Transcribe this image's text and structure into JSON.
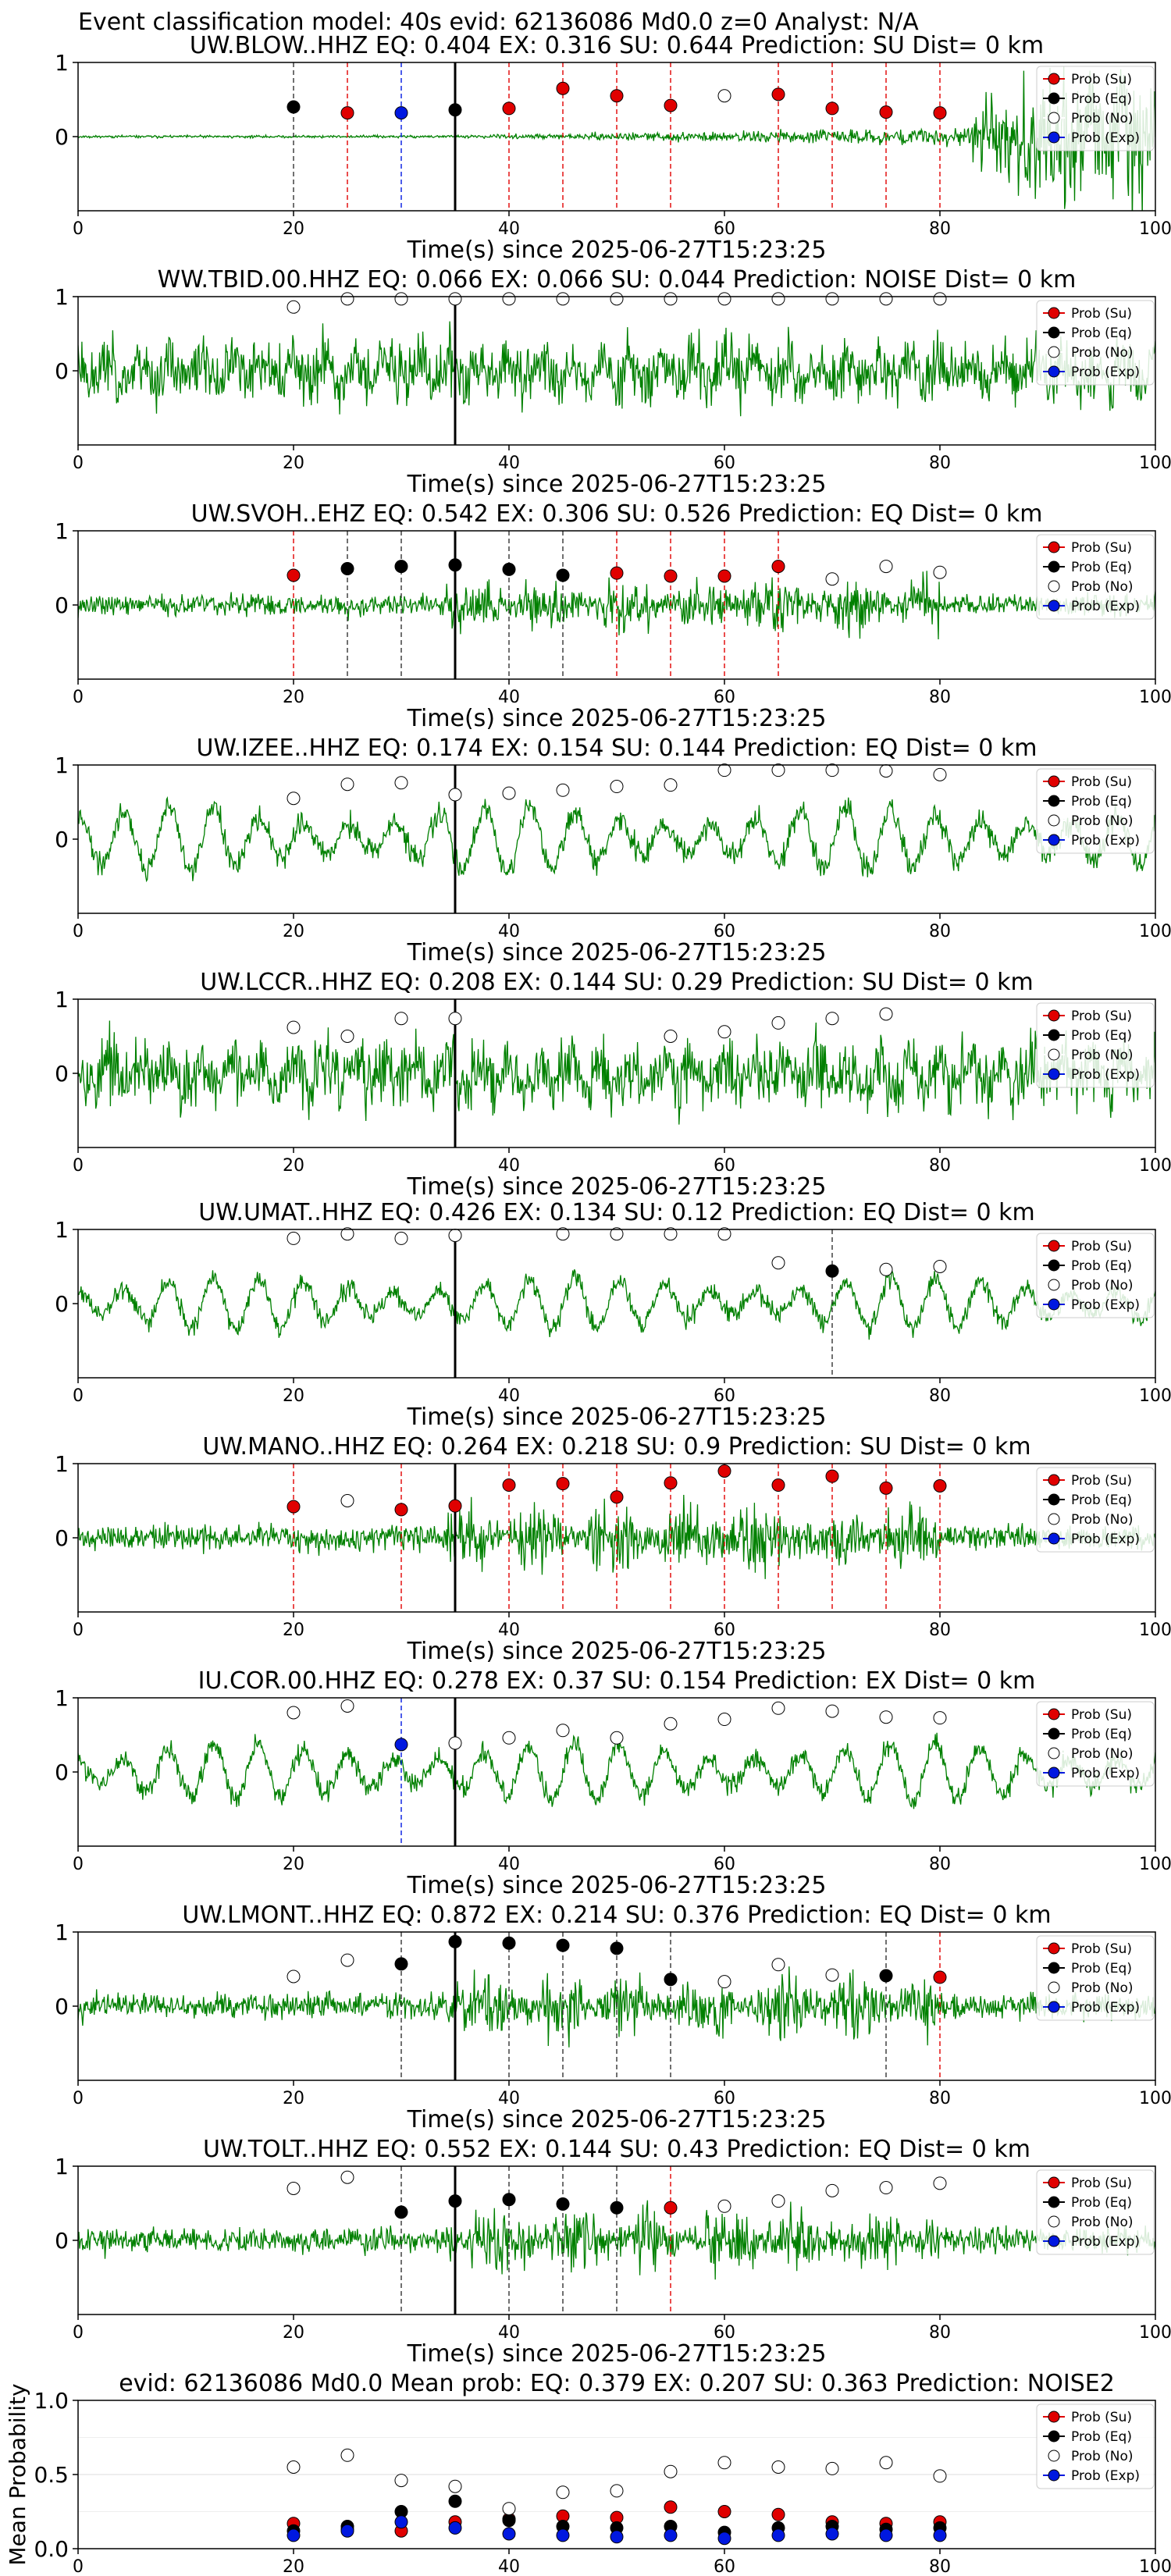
{
  "figure": {
    "suptitle": "Event classification model: 40s evid: 62136086 Md0.0 z=0 Analyst: N/A",
    "xlabel": "Time(s) since 2025-06-27T15:23:25",
    "colors": {
      "trace": "#008000",
      "su": "#e00000",
      "eq": "#000000",
      "no": "#ffffff",
      "exp": "#0018e0"
    }
  },
  "legend": [
    "Prob (Su)",
    "Prob (Eq)",
    "Prob (No)",
    "Prob (Exp)"
  ],
  "chart_data": [
    {
      "type": "line",
      "title": "UW.BLOW..HHZ   EQ: 0.404   EX: 0.316   SU: 0.644   Prediction: SU    Dist= 0 km",
      "xlim": [
        0,
        100
      ],
      "ylim": [
        -1,
        1
      ],
      "yticks": [
        "0",
        "1"
      ],
      "xticks": [
        "0",
        "20",
        "40",
        "60",
        "80",
        "100"
      ],
      "trace_profile": "emergent",
      "trace_amplitude": 0.12,
      "trace_seed": 11,
      "pick_line": 35,
      "points": [
        {
          "t": 20,
          "cls": "eq",
          "p": 0.4
        },
        {
          "t": 25,
          "cls": "su",
          "p": 0.32
        },
        {
          "t": 30,
          "cls": "exp",
          "p": 0.32
        },
        {
          "t": 35,
          "cls": "eq",
          "p": 0.36
        },
        {
          "t": 40,
          "cls": "su",
          "p": 0.38
        },
        {
          "t": 45,
          "cls": "su",
          "p": 0.65
        },
        {
          "t": 50,
          "cls": "su",
          "p": 0.55
        },
        {
          "t": 55,
          "cls": "su",
          "p": 0.42
        },
        {
          "t": 60,
          "cls": "no",
          "p": 0.55
        },
        {
          "t": 65,
          "cls": "su",
          "p": 0.57
        },
        {
          "t": 70,
          "cls": "su",
          "p": 0.38
        },
        {
          "t": 75,
          "cls": "su",
          "p": 0.33
        },
        {
          "t": 80,
          "cls": "su",
          "p": 0.32
        }
      ]
    },
    {
      "type": "line",
      "title": "WW.TBID.00.HHZ   EQ: 0.066  EX: 0.066  SU: 0.044   Prediction: NOISE    Dist= 0 km",
      "xlim": [
        0,
        100
      ],
      "ylim": [
        -1,
        1
      ],
      "yticks": [
        "0",
        "1"
      ],
      "xticks": [
        "0",
        "20",
        "40",
        "60",
        "80",
        "100"
      ],
      "trace_profile": "noise",
      "trace_amplitude": 0.55,
      "trace_seed": 23,
      "pick_line": 35,
      "points": [
        {
          "t": 20,
          "cls": "no",
          "p": 0.86
        },
        {
          "t": 25,
          "cls": "no",
          "p": 0.97
        },
        {
          "t": 30,
          "cls": "no",
          "p": 0.97
        },
        {
          "t": 35,
          "cls": "no",
          "p": 0.97
        },
        {
          "t": 40,
          "cls": "no",
          "p": 0.97
        },
        {
          "t": 45,
          "cls": "no",
          "p": 0.97
        },
        {
          "t": 50,
          "cls": "no",
          "p": 0.97
        },
        {
          "t": 55,
          "cls": "no",
          "p": 0.97
        },
        {
          "t": 60,
          "cls": "no",
          "p": 0.97
        },
        {
          "t": 65,
          "cls": "no",
          "p": 0.97
        },
        {
          "t": 70,
          "cls": "no",
          "p": 0.97
        },
        {
          "t": 75,
          "cls": "no",
          "p": 0.97
        },
        {
          "t": 80,
          "cls": "no",
          "p": 0.97
        }
      ]
    },
    {
      "type": "line",
      "title": "UW.SVOH..EHZ   EQ: 0.542   EX: 0.306   SU: 0.526   Prediction: EQ    Dist= 0 km",
      "xlim": [
        0,
        100
      ],
      "ylim": [
        -1,
        1
      ],
      "yticks": [
        "0",
        "1"
      ],
      "xticks": [
        "0",
        "20",
        "40",
        "60",
        "80",
        "100"
      ],
      "trace_profile": "burst",
      "trace_amplitude": 0.25,
      "trace_seed": 37,
      "pick_line": 35,
      "points": [
        {
          "t": 20,
          "cls": "su",
          "p": 0.4
        },
        {
          "t": 25,
          "cls": "eq",
          "p": 0.49
        },
        {
          "t": 30,
          "cls": "eq",
          "p": 0.52
        },
        {
          "t": 35,
          "cls": "eq",
          "p": 0.54
        },
        {
          "t": 40,
          "cls": "eq",
          "p": 0.48
        },
        {
          "t": 45,
          "cls": "eq",
          "p": 0.4
        },
        {
          "t": 50,
          "cls": "su",
          "p": 0.43
        },
        {
          "t": 55,
          "cls": "su",
          "p": 0.39
        },
        {
          "t": 60,
          "cls": "su",
          "p": 0.39
        },
        {
          "t": 65,
          "cls": "su",
          "p": 0.52
        },
        {
          "t": 70,
          "cls": "no",
          "p": 0.35
        },
        {
          "t": 75,
          "cls": "no",
          "p": 0.52
        },
        {
          "t": 80,
          "cls": "no",
          "p": 0.44
        }
      ]
    },
    {
      "type": "line",
      "title": "UW.IZEE..HHZ   EQ: 0.174  EX: 0.154  SU: 0.144   Prediction: EQ    Dist= 0 km",
      "xlim": [
        0,
        100
      ],
      "ylim": [
        -1,
        1
      ],
      "yticks": [
        "0",
        "1"
      ],
      "xticks": [
        "0",
        "20",
        "40",
        "60",
        "80",
        "100"
      ],
      "trace_profile": "wave",
      "trace_amplitude": 0.55,
      "trace_seed": 41,
      "pick_line": 35,
      "points": [
        {
          "t": 20,
          "cls": "no",
          "p": 0.55
        },
        {
          "t": 25,
          "cls": "no",
          "p": 0.74
        },
        {
          "t": 30,
          "cls": "no",
          "p": 0.76
        },
        {
          "t": 35,
          "cls": "no",
          "p": 0.6
        },
        {
          "t": 40,
          "cls": "no",
          "p": 0.62
        },
        {
          "t": 45,
          "cls": "no",
          "p": 0.66
        },
        {
          "t": 50,
          "cls": "no",
          "p": 0.71
        },
        {
          "t": 55,
          "cls": "no",
          "p": 0.73
        },
        {
          "t": 60,
          "cls": "no",
          "p": 0.93
        },
        {
          "t": 65,
          "cls": "no",
          "p": 0.93
        },
        {
          "t": 70,
          "cls": "no",
          "p": 0.93
        },
        {
          "t": 75,
          "cls": "no",
          "p": 0.92
        },
        {
          "t": 80,
          "cls": "no",
          "p": 0.87
        }
      ]
    },
    {
      "type": "line",
      "title": "UW.LCCR..HHZ   EQ: 0.208  EX: 0.144  SU: 0.29   Prediction: SU    Dist= 0 km",
      "xlim": [
        0,
        100
      ],
      "ylim": [
        -1,
        1
      ],
      "yticks": [
        "0",
        "1"
      ],
      "xticks": [
        "0",
        "20",
        "40",
        "60",
        "80",
        "100"
      ],
      "trace_profile": "noise",
      "trace_amplitude": 0.6,
      "trace_seed": 53,
      "pick_line": 35,
      "points": [
        {
          "t": 20,
          "cls": "no",
          "p": 0.62
        },
        {
          "t": 25,
          "cls": "no",
          "p": 0.5
        },
        {
          "t": 30,
          "cls": "no",
          "p": 0.74
        },
        {
          "t": 35,
          "cls": "no",
          "p": 0.74
        },
        {
          "t": 55,
          "cls": "no",
          "p": 0.5
        },
        {
          "t": 60,
          "cls": "no",
          "p": 0.56
        },
        {
          "t": 65,
          "cls": "no",
          "p": 0.68
        },
        {
          "t": 70,
          "cls": "no",
          "p": 0.74
        },
        {
          "t": 75,
          "cls": "no",
          "p": 0.8
        }
      ]
    },
    {
      "type": "line",
      "title": "UW.UMAT..HHZ   EQ: 0.426  EX: 0.134  SU: 0.12   Prediction: EQ    Dist= 0 km",
      "xlim": [
        0,
        100
      ],
      "ylim": [
        -1,
        1
      ],
      "yticks": [
        "0",
        "1"
      ],
      "xticks": [
        "0",
        "20",
        "40",
        "60",
        "80",
        "100"
      ],
      "trace_profile": "wave",
      "trace_amplitude": 0.45,
      "trace_seed": 61,
      "pick_line": 35,
      "points": [
        {
          "t": 20,
          "cls": "no",
          "p": 0.88
        },
        {
          "t": 25,
          "cls": "no",
          "p": 0.94
        },
        {
          "t": 30,
          "cls": "no",
          "p": 0.88
        },
        {
          "t": 35,
          "cls": "no",
          "p": 0.92
        },
        {
          "t": 45,
          "cls": "no",
          "p": 0.94
        },
        {
          "t": 50,
          "cls": "no",
          "p": 0.94
        },
        {
          "t": 55,
          "cls": "no",
          "p": 0.94
        },
        {
          "t": 60,
          "cls": "no",
          "p": 0.94
        },
        {
          "t": 65,
          "cls": "no",
          "p": 0.55
        },
        {
          "t": 70,
          "cls": "eq",
          "p": 0.44
        },
        {
          "t": 75,
          "cls": "no",
          "p": 0.46
        },
        {
          "t": 80,
          "cls": "no",
          "p": 0.5
        }
      ]
    },
    {
      "type": "line",
      "title": "UW.MANO..HHZ   EQ: 0.264  EX: 0.218  SU: 0.9   Prediction: SU    Dist= 0 km",
      "xlim": [
        0,
        100
      ],
      "ylim": [
        -1,
        1
      ],
      "yticks": [
        "0",
        "1"
      ],
      "xticks": [
        "0",
        "20",
        "40",
        "60",
        "80",
        "100"
      ],
      "trace_profile": "burst",
      "trace_amplitude": 0.3,
      "trace_seed": 71,
      "pick_line": 35,
      "points": [
        {
          "t": 20,
          "cls": "su",
          "p": 0.42
        },
        {
          "t": 25,
          "cls": "no",
          "p": 0.5
        },
        {
          "t": 30,
          "cls": "su",
          "p": 0.38
        },
        {
          "t": 35,
          "cls": "su",
          "p": 0.43
        },
        {
          "t": 40,
          "cls": "su",
          "p": 0.71
        },
        {
          "t": 45,
          "cls": "su",
          "p": 0.73
        },
        {
          "t": 50,
          "cls": "su",
          "p": 0.55
        },
        {
          "t": 55,
          "cls": "su",
          "p": 0.74
        },
        {
          "t": 60,
          "cls": "su",
          "p": 0.9
        },
        {
          "t": 65,
          "cls": "su",
          "p": 0.71
        },
        {
          "t": 70,
          "cls": "su",
          "p": 0.83
        },
        {
          "t": 75,
          "cls": "su",
          "p": 0.67
        },
        {
          "t": 80,
          "cls": "su",
          "p": 0.7
        }
      ]
    },
    {
      "type": "line",
      "title": "IU.COR.00.HHZ   EQ: 0.278  EX: 0.37  SU: 0.154   Prediction: EX    Dist= 0 km",
      "xlim": [
        0,
        100
      ],
      "ylim": [
        -1,
        1
      ],
      "yticks": [
        "0",
        "1"
      ],
      "xticks": [
        "0",
        "20",
        "40",
        "60",
        "80",
        "100"
      ],
      "trace_profile": "wave",
      "trace_amplitude": 0.5,
      "trace_seed": 83,
      "pick_line": 35,
      "points": [
        {
          "t": 20,
          "cls": "no",
          "p": 0.8
        },
        {
          "t": 25,
          "cls": "no",
          "p": 0.89
        },
        {
          "t": 30,
          "cls": "exp",
          "p": 0.37
        },
        {
          "t": 35,
          "cls": "no",
          "p": 0.39
        },
        {
          "t": 40,
          "cls": "no",
          "p": 0.46
        },
        {
          "t": 45,
          "cls": "no",
          "p": 0.56
        },
        {
          "t": 50,
          "cls": "no",
          "p": 0.46
        },
        {
          "t": 55,
          "cls": "no",
          "p": 0.65
        },
        {
          "t": 60,
          "cls": "no",
          "p": 0.71
        },
        {
          "t": 65,
          "cls": "no",
          "p": 0.86
        },
        {
          "t": 70,
          "cls": "no",
          "p": 0.82
        },
        {
          "t": 75,
          "cls": "no",
          "p": 0.74
        },
        {
          "t": 80,
          "cls": "no",
          "p": 0.73
        }
      ]
    },
    {
      "type": "line",
      "title": "UW.LMONT..HHZ   EQ: 0.872  EX: 0.214  SU: 0.376   Prediction: EQ    Dist= 0 km",
      "xlim": [
        0,
        100
      ],
      "ylim": [
        -1,
        1
      ],
      "yticks": [
        "0",
        "1"
      ],
      "xticks": [
        "0",
        "20",
        "40",
        "60",
        "80",
        "100"
      ],
      "trace_profile": "burst",
      "trace_amplitude": 0.3,
      "trace_seed": 97,
      "pick_line": 35,
      "points": [
        {
          "t": 20,
          "cls": "no",
          "p": 0.4
        },
        {
          "t": 25,
          "cls": "no",
          "p": 0.62
        },
        {
          "t": 30,
          "cls": "eq",
          "p": 0.57
        },
        {
          "t": 35,
          "cls": "eq",
          "p": 0.87
        },
        {
          "t": 40,
          "cls": "eq",
          "p": 0.85
        },
        {
          "t": 45,
          "cls": "eq",
          "p": 0.82
        },
        {
          "t": 50,
          "cls": "eq",
          "p": 0.78
        },
        {
          "t": 55,
          "cls": "eq",
          "p": 0.36
        },
        {
          "t": 60,
          "cls": "no",
          "p": 0.33
        },
        {
          "t": 65,
          "cls": "no",
          "p": 0.56
        },
        {
          "t": 70,
          "cls": "no",
          "p": 0.42
        },
        {
          "t": 75,
          "cls": "eq",
          "p": 0.41
        },
        {
          "t": 80,
          "cls": "su",
          "p": 0.39
        }
      ]
    },
    {
      "type": "line",
      "title": "UW.TOLT..HHZ   EQ: 0.552  EX: 0.144  SU: 0.43   Prediction: EQ    Dist= 0 km",
      "xlim": [
        0,
        100
      ],
      "ylim": [
        -1,
        1
      ],
      "yticks": [
        "0",
        "1"
      ],
      "xticks": [
        "0",
        "20",
        "40",
        "60",
        "80",
        "100"
      ],
      "trace_profile": "burst",
      "trace_amplitude": 0.3,
      "trace_seed": 107,
      "pick_line": 35,
      "points": [
        {
          "t": 20,
          "cls": "no",
          "p": 0.7
        },
        {
          "t": 25,
          "cls": "no",
          "p": 0.85
        },
        {
          "t": 30,
          "cls": "eq",
          "p": 0.38
        },
        {
          "t": 35,
          "cls": "eq",
          "p": 0.53
        },
        {
          "t": 40,
          "cls": "eq",
          "p": 0.55
        },
        {
          "t": 45,
          "cls": "eq",
          "p": 0.49
        },
        {
          "t": 50,
          "cls": "eq",
          "p": 0.44
        },
        {
          "t": 55,
          "cls": "su",
          "p": 0.44
        },
        {
          "t": 60,
          "cls": "no",
          "p": 0.46
        },
        {
          "t": 65,
          "cls": "no",
          "p": 0.53
        },
        {
          "t": 70,
          "cls": "no",
          "p": 0.67
        },
        {
          "t": 75,
          "cls": "no",
          "p": 0.71
        },
        {
          "t": 80,
          "cls": "no",
          "p": 0.77
        }
      ]
    },
    {
      "type": "scatter",
      "title": "evid: 62136086  Md0.0    Mean prob:    EQ: 0.379   EX: 0.207   SU: 0.363    Prediction: NOISE2",
      "ylabel": "Mean Probability",
      "xlim": [
        0,
        100
      ],
      "ylim": [
        0,
        1
      ],
      "xticks": [
        "0",
        "20",
        "40",
        "60",
        "80",
        "100"
      ],
      "yticks": [
        "0.0",
        "0.5",
        "1.0"
      ],
      "x": [
        20,
        25,
        30,
        35,
        40,
        45,
        50,
        55,
        60,
        65,
        70,
        75,
        80
      ],
      "series": [
        {
          "name": "Prob (Su)",
          "cls": "su",
          "values": [
            0.17,
            0.13,
            0.12,
            0.18,
            0.2,
            0.22,
            0.21,
            0.28,
            0.25,
            0.23,
            0.18,
            0.17,
            0.18
          ]
        },
        {
          "name": "Prob (Eq)",
          "cls": "eq",
          "values": [
            0.12,
            0.15,
            0.25,
            0.32,
            0.19,
            0.15,
            0.14,
            0.15,
            0.11,
            0.14,
            0.15,
            0.13,
            0.14
          ]
        },
        {
          "name": "Prob (No)",
          "cls": "no",
          "values": [
            0.55,
            0.63,
            0.46,
            0.42,
            0.27,
            0.38,
            0.39,
            0.52,
            0.58,
            0.55,
            0.54,
            0.58,
            0.49
          ]
        },
        {
          "name": "Prob (Exp)",
          "cls": "exp",
          "values": [
            0.09,
            0.12,
            0.18,
            0.14,
            0.1,
            0.09,
            0.08,
            0.09,
            0.07,
            0.09,
            0.1,
            0.09,
            0.09
          ]
        }
      ]
    }
  ]
}
